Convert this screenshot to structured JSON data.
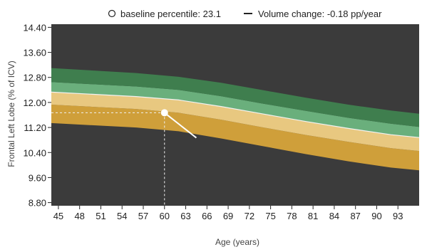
{
  "legend": {
    "baseline_label": "baseline percentile: 23.1",
    "volume_label": "Volume change: -0.18 pp/year"
  },
  "colors": {
    "plot_bg": "#3b3b3b",
    "band_outer_top": "#3f7e4e",
    "band_inner_top": "#6aaf7c",
    "band_inner_bottom": "#e8c880",
    "band_outer_bottom": "#cf9f3a",
    "separator": "#f2f2f2",
    "axis_text": "#222222",
    "label_text": "#444444"
  },
  "chart_data": {
    "type": "area",
    "xlabel": "Age (years)",
    "ylabel": "Frontal Left Lobe (% of ICV)",
    "xlim": [
      44,
      96
    ],
    "ylim": [
      8.7,
      14.5
    ],
    "xticks": [
      45,
      48,
      51,
      54,
      57,
      60,
      63,
      66,
      69,
      72,
      75,
      78,
      81,
      84,
      87,
      90,
      93
    ],
    "ytick_labels": [
      "14.40",
      "13.60",
      "12.80",
      "12.00",
      "11.20",
      "10.40",
      "9.60",
      "8.80"
    ],
    "grid": false,
    "legend_position": "top-right",
    "x": [
      44,
      50,
      56,
      62,
      68,
      74,
      80,
      86,
      92,
      96
    ],
    "series": [
      {
        "values": [
          11.34,
          11.27,
          11.2,
          11.08,
          10.85,
          10.6,
          10.35,
          10.12,
          9.92,
          9.83
        ]
      },
      {
        "values": [
          11.93,
          11.86,
          11.79,
          11.67,
          11.45,
          11.2,
          10.96,
          10.74,
          10.54,
          10.45
        ]
      },
      {
        "values": [
          12.33,
          12.26,
          12.19,
          12.08,
          11.87,
          11.63,
          11.39,
          11.17,
          10.97,
          10.88
        ]
      },
      {
        "values": [
          12.65,
          12.58,
          12.51,
          12.4,
          12.2,
          11.96,
          11.73,
          11.51,
          11.32,
          11.22
        ]
      },
      {
        "values": [
          13.1,
          13.02,
          12.94,
          12.82,
          12.63,
          12.39,
          12.15,
          11.93,
          11.74,
          11.64
        ]
      }
    ],
    "annotations": {
      "baseline_point": {
        "x": 60,
        "y": 11.67
      },
      "trend_end": {
        "x": 64.5,
        "y": 10.87
      }
    }
  }
}
